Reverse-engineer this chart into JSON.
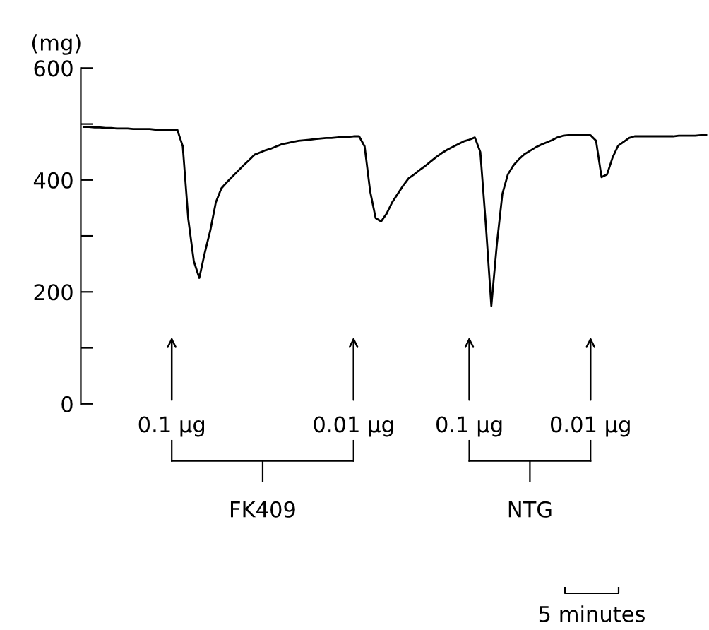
{
  "chart_data": {
    "type": "line",
    "ylabel": "(mg)",
    "categories": [
      null,
      null,
      null,
      null,
      null,
      null,
      null,
      null,
      null,
      null,
      null,
      null,
      null,
      null,
      null,
      null,
      null,
      null,
      null,
      null,
      null,
      null,
      null,
      null,
      null,
      null,
      null,
      null,
      null,
      null,
      null,
      null,
      null,
      null,
      null,
      null,
      null,
      null,
      null,
      null,
      null,
      null,
      null,
      null,
      null,
      null,
      null,
      null,
      null,
      null,
      null,
      null,
      null,
      null,
      null,
      null,
      null,
      null,
      null,
      null,
      null,
      null,
      null,
      null,
      null,
      null,
      null,
      null,
      null,
      null,
      null,
      null,
      null,
      null,
      null,
      null,
      null,
      null,
      null,
      null,
      null,
      null,
      null,
      null,
      null,
      null,
      null,
      null,
      null,
      null,
      null,
      null,
      null,
      null,
      null,
      null,
      null,
      null,
      null,
      null,
      null,
      null,
      null,
      null,
      null,
      null,
      null,
      null,
      null,
      null,
      null,
      null,
      null,
      null
    ],
    "series": [
      {
        "color": "#000000",
        "values": [
          495,
          495,
          494,
          494,
          493,
          493,
          492,
          492,
          492,
          491,
          491,
          491,
          491,
          490,
          490,
          490,
          490,
          490,
          460,
          330,
          255,
          225,
          270,
          310,
          360,
          385,
          396,
          406,
          416,
          426,
          435,
          445,
          449,
          453,
          456,
          460,
          464,
          466,
          468,
          470,
          471,
          472,
          473,
          474,
          475,
          475,
          476,
          477,
          477,
          478,
          478,
          460,
          380,
          332,
          326,
          340,
          360,
          375,
          390,
          403,
          410,
          418,
          425,
          433,
          441,
          448,
          454,
          459,
          464,
          469,
          472,
          476,
          450,
          320,
          175,
          285,
          375,
          410,
          426,
          437,
          446,
          452,
          458,
          463,
          467,
          471,
          476,
          479,
          480,
          480,
          480,
          480,
          480,
          470,
          405,
          410,
          440,
          461,
          468,
          475,
          478,
          478,
          478,
          478,
          478,
          478,
          478,
          478,
          479,
          479,
          479,
          479,
          480,
          480
        ]
      }
    ],
    "ylim": [
      0,
      600
    ],
    "yticks": [
      0,
      {
        "value": 100,
        "label": null
      },
      200,
      {
        "value": 300,
        "label": null
      },
      400,
      {
        "value": 500,
        "label": null
      },
      600
    ],
    "tick_labels": "y",
    "grid": false,
    "legend": false,
    "marker": "none",
    "line_style": "solid",
    "annotations": [
      "0.1 µg",
      "0.01 µg",
      "0.1 µg",
      "0.01 µg",
      "FK409",
      "NTG",
      "5 minutes"
    ]
  }
}
